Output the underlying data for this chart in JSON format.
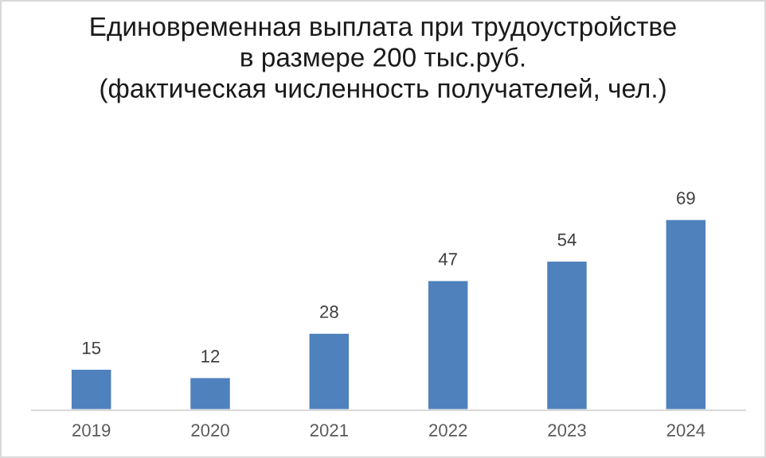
{
  "chart_data": {
    "type": "bar",
    "title": "Единовременная выплата при трудоустройстве\nв размере 200 тыс.руб.\n(фактическая численность получателей, чел.)",
    "categories": [
      "2019",
      "2020",
      "2021",
      "2022",
      "2023",
      "2024"
    ],
    "values": [
      15,
      12,
      28,
      47,
      54,
      69
    ],
    "color": "#4f81bd",
    "data_labels": true,
    "grid": false,
    "legend": false,
    "tick_labels": "x"
  }
}
